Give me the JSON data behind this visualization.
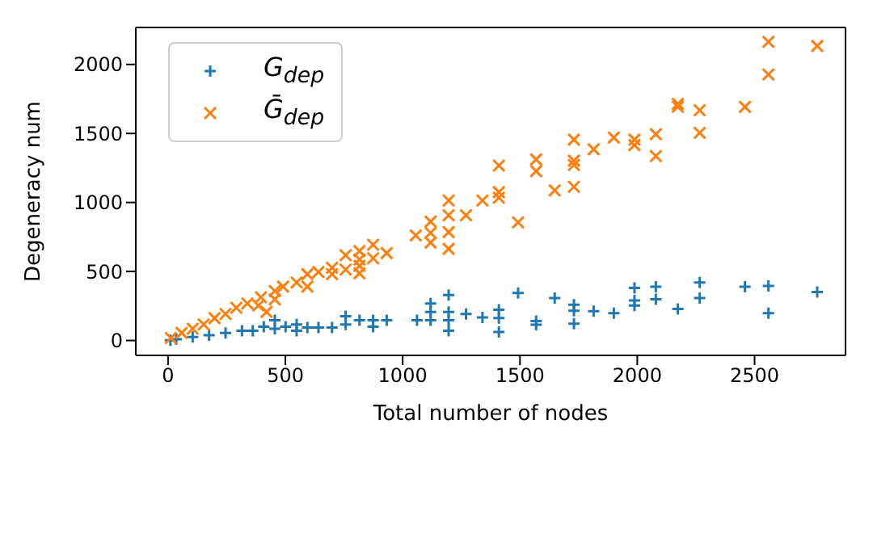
{
  "chart_data": {
    "type": "scatter",
    "xlabel": "Total number of nodes",
    "ylabel": "Degeneracy num",
    "xlim": [
      -137.5,
      2887.5
    ],
    "ylim": [
      -108,
      2268
    ],
    "xticks": [
      0,
      500,
      1000,
      1500,
      2000,
      2500
    ],
    "yticks": [
      0,
      500,
      1000,
      1500,
      2000
    ],
    "grid": false,
    "legend": "top left",
    "series": [
      {
        "name": "G$_{dep}$",
        "color": "#1f77b4",
        "marker": "plus",
        "x": [
          10,
          35,
          105,
          175,
          245,
          315,
          361,
          408,
          455,
          455,
          501,
          548,
          548,
          594,
          641,
          699,
          757,
          757,
          816,
          874,
          874,
          932,
          1061,
          1119,
          1119,
          1119,
          1196,
          1196,
          1196,
          1196,
          1270,
          1340,
          1410,
          1410,
          1410,
          1492,
          1569,
          1569,
          1648,
          1730,
          1730,
          1730,
          1814,
          1900,
          1988,
          1988,
          1988,
          2079,
          2079,
          2173,
          2266,
          2266,
          2459,
          2559,
          2559,
          2767
        ],
        "values": [
          2,
          9,
          25,
          39,
          55,
          70,
          70,
          100,
          146,
          85,
          100,
          116,
          70,
          94,
          94,
          94,
          176,
          116,
          146,
          146,
          100,
          146,
          146,
          268,
          207,
          146,
          329,
          207,
          146,
          70,
          192,
          167,
          222,
          162,
          61,
          344,
          140,
          115,
          308,
          259,
          216,
          122,
          213,
          198,
          381,
          290,
          253,
          390,
          298,
          228,
          420,
          308,
          390,
          396,
          198,
          352
        ]
      },
      {
        "name": "Ḡ$_{dep}$",
        "color": "#ff7f0e",
        "marker": "cross",
        "x": [
          12,
          58,
          105,
          152,
          198,
          245,
          291,
          338,
          385,
          396,
          420,
          455,
          455,
          490,
          548,
          594,
          594,
          641,
          699,
          699,
          757,
          757,
          816,
          816,
          816,
          816,
          874,
          874,
          932,
          1056,
          1119,
          1119,
          1119,
          1196,
          1196,
          1196,
          1196,
          1270,
          1340,
          1410,
          1410,
          1410,
          1492,
          1569,
          1569,
          1648,
          1730,
          1730,
          1730,
          1730,
          1814,
          1900,
          1988,
          1988,
          2079,
          2079,
          2173,
          2173,
          2266,
          2266,
          2459,
          2559,
          2559,
          2767
        ],
        "values": [
          18,
          55,
          85,
          116,
          162,
          192,
          237,
          268,
          253,
          313,
          207,
          359,
          298,
          390,
          420,
          390,
          481,
          496,
          527,
          480,
          618,
          514,
          648,
          587,
          541,
          487,
          694,
          596,
          633,
          761,
          861,
          780,
          709,
          1014,
          907,
          785,
          664,
          907,
          1014,
          1267,
          1075,
          1035,
          856,
          1312,
          1227,
          1087,
          1455,
          1303,
          1272,
          1114,
          1385,
          1470,
          1455,
          1416,
          1495,
          1336,
          1714,
          1693,
          1668,
          1504,
          1692,
          2164,
          1927,
          2134
        ]
      }
    ]
  }
}
